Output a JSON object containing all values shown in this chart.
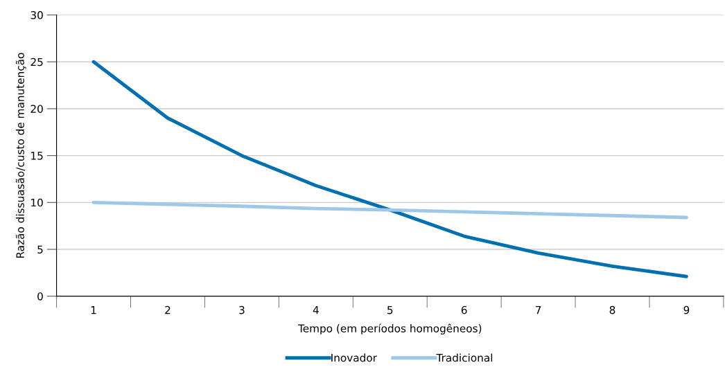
{
  "chart_data": {
    "type": "line",
    "xlabel": "Tempo (em períodos homogêneos)",
    "ylabel": "Razão dissuasão/custo de manutenção",
    "categories": [
      "1",
      "2",
      "3",
      "4",
      "5",
      "6",
      "7",
      "8",
      "9"
    ],
    "series": [
      {
        "name": "Inovador",
        "color": "#0070b0",
        "values": [
          25,
          19,
          15,
          11.8,
          9.2,
          6.4,
          4.6,
          3.2,
          2.1
        ]
      },
      {
        "name": "Tradicional",
        "color": "#9ec8ea",
        "values": [
          10,
          9.8,
          9.6,
          9.35,
          9.2,
          9.0,
          8.8,
          8.6,
          8.4
        ]
      }
    ],
    "ylim": [
      0,
      30
    ],
    "yticks": [
      0,
      5,
      10,
      15,
      20,
      25,
      30
    ],
    "grid": "y",
    "legend": "bottom",
    "marker": "none",
    "line_style": "solid"
  }
}
